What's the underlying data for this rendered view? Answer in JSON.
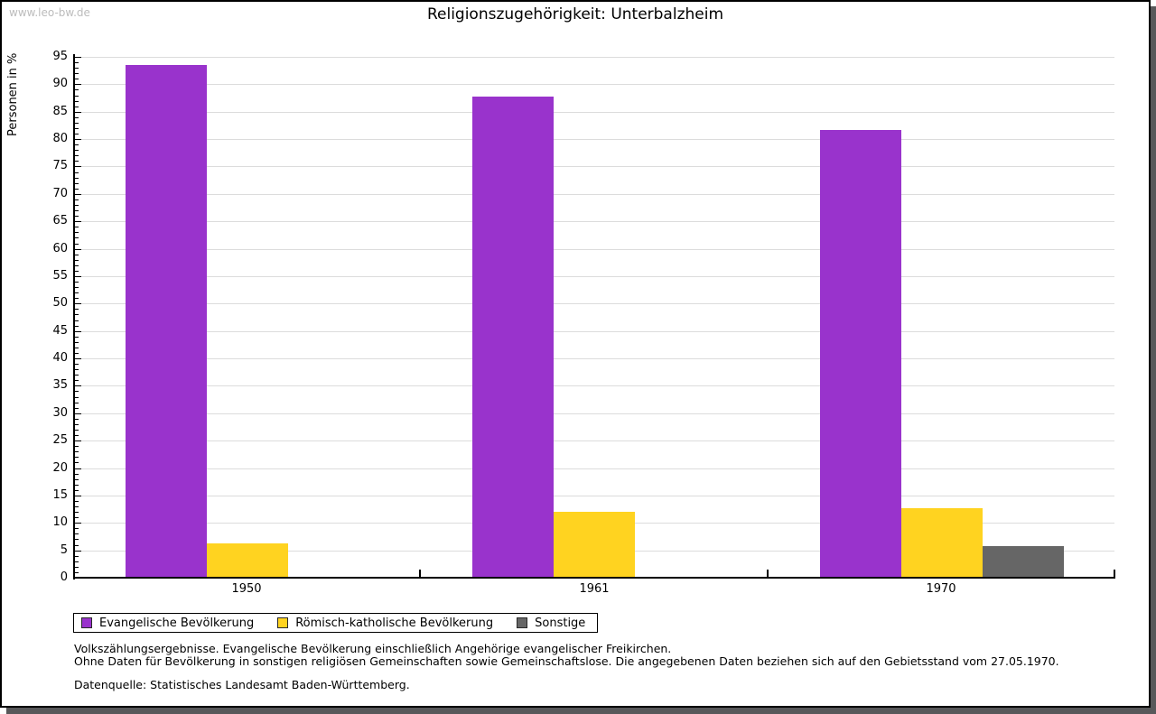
{
  "window": {
    "watermark": "www.leo-bw.de"
  },
  "title": "Religionszugehörigkeit: Unterbalzheim",
  "chart_data": {
    "type": "bar",
    "title": "Religionszugehörigkeit: Unterbalzheim",
    "xlabel": "",
    "ylabel": "Personen in %",
    "ylim": [
      0,
      95
    ],
    "ytick_step": 5,
    "minor_tick_step": 1,
    "grid": true,
    "legend_position": "bottom-left",
    "categories": [
      "1950",
      "1961",
      "1970"
    ],
    "series": [
      {
        "name": "Evangelische Bevölkerung",
        "color": "#9933CC",
        "values": [
          93.6,
          87.8,
          81.6
        ]
      },
      {
        "name": "Römisch-katholische Bevölkerung",
        "color": "#FFD320",
        "values": [
          6.2,
          12.1,
          12.7
        ]
      },
      {
        "name": "Sonstige",
        "color": "#666666",
        "values": [
          0.2,
          0.1,
          5.7
        ]
      }
    ]
  },
  "footnotes": {
    "line1": "Volkszählungsergebnisse. Evangelische Bevölkerung einschließlich Angehörige evangelischer Freikirchen.",
    "line2": "Ohne Daten für Bevölkerung in sonstigen religiösen Gemeinschaften sowie Gemeinschaftslose. Die angegebenen Daten beziehen sich auf den Gebietsstand vom 27.05.1970.",
    "source": "Datenquelle: Statistisches Landesamt Baden-Württemberg."
  },
  "colors": {
    "evangelisch": "#9933CC",
    "katholisch": "#FFD320",
    "sonstige": "#666666",
    "gridline": "#DCDCDC",
    "axis": "#000000",
    "window_shadow": "#58585A",
    "watermark": "#BCBCBC"
  }
}
